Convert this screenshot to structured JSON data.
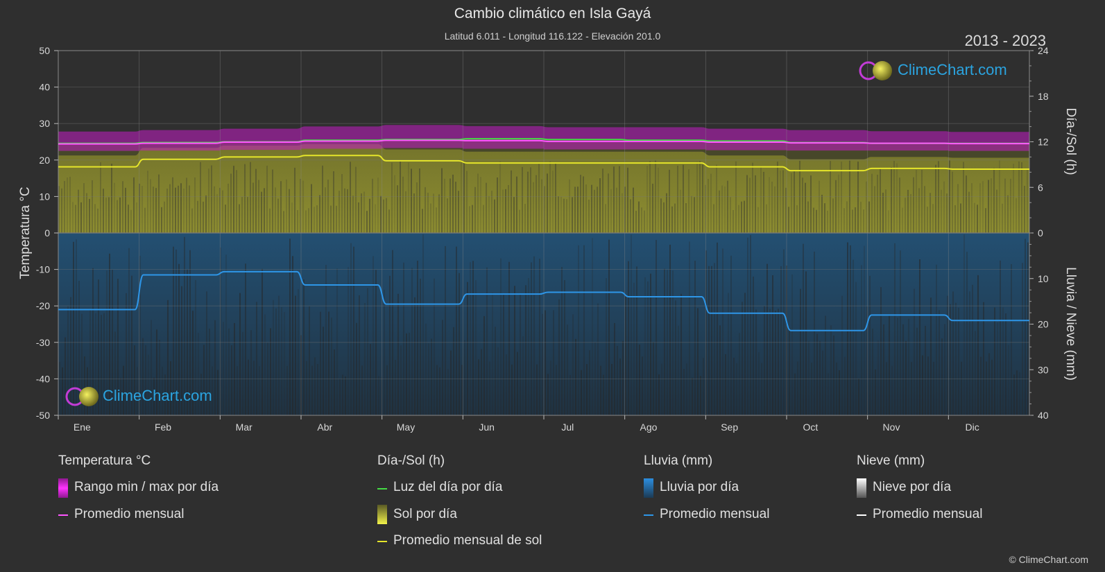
{
  "header": {
    "title": "Cambio climático en Isla Gayá",
    "subtitle": "Latitud 6.011 - Longitud 116.122 - Elevación 201.0",
    "years": "2013 - 2023"
  },
  "logo": {
    "text": "ClimeChart.com"
  },
  "copyright": "© ClimeChart.com",
  "colors": {
    "background": "#2f2f2f",
    "temp_range": "#c21bc4",
    "temp_avg": "#ff55ff",
    "daylight": "#44dd44",
    "sun_fill": "#8b8b2e",
    "sun_avg": "#e6e62a",
    "rain_fill": "#1e5c8c",
    "rain_avg": "#2e96e8",
    "snow_avg": "#ffffff",
    "logo_text": "#2ba4e0"
  },
  "legend": {
    "temperature": {
      "title": "Temperatura °C",
      "items": [
        "Rango min / max por día",
        "Promedio mensual"
      ]
    },
    "sun": {
      "title": "Día-/Sol (h)",
      "items": [
        "Luz del día por día",
        "Sol por día",
        "Promedio mensual de sol"
      ]
    },
    "rain": {
      "title": "Lluvia (mm)",
      "items": [
        "Lluvia por día",
        "Promedio mensual"
      ]
    },
    "snow": {
      "title": "Nieve (mm)",
      "items": [
        "Nieve por día",
        "Promedio mensual"
      ]
    }
  },
  "chart_data": {
    "type": "line",
    "categories": [
      "Ene",
      "Feb",
      "Mar",
      "Abr",
      "May",
      "Jun",
      "Jul",
      "Ago",
      "Sep",
      "Oct",
      "Nov",
      "Dic"
    ],
    "y_left": {
      "label": "Temperatura °C",
      "ticks": [
        50,
        40,
        30,
        20,
        10,
        0,
        -10,
        -20,
        -30,
        -40,
        -50
      ],
      "range": [
        -50,
        50
      ]
    },
    "y_right_top": {
      "label": "Día-/Sol (h)",
      "ticks": [
        24,
        18,
        12,
        6,
        0
      ],
      "range": [
        0,
        24
      ]
    },
    "y_right_bottom": {
      "label": "Lluvia / Nieve (mm)",
      "ticks": [
        0,
        10,
        20,
        30,
        40
      ],
      "range": [
        0,
        40
      ]
    },
    "grid": true,
    "series": [
      {
        "name": "Promedio mensual",
        "axis": "temperature",
        "values": [
          24.4,
          24.6,
          24.9,
          25.2,
          25.4,
          25.3,
          25.1,
          25.1,
          24.9,
          24.7,
          24.6,
          24.5
        ]
      },
      {
        "name": "Rango min / max por día",
        "axis": "temperature",
        "min": [
          22.5,
          22.6,
          22.8,
          23.1,
          23.3,
          23.1,
          22.9,
          22.9,
          22.7,
          22.6,
          22.6,
          22.5
        ],
        "max": [
          27.8,
          28.2,
          28.6,
          29.2,
          29.6,
          29.3,
          29.0,
          29.0,
          28.6,
          28.2,
          27.9,
          27.7
        ]
      },
      {
        "name": "Luz del día por día",
        "axis": "sun",
        "values": [
          11.8,
          11.9,
          12.0,
          12.2,
          12.3,
          12.4,
          12.3,
          12.2,
          12.1,
          11.9,
          11.8,
          11.8
        ]
      },
      {
        "name": "Promedio mensual de sol",
        "axis": "sun",
        "values": [
          8.7,
          9.7,
          10.0,
          10.2,
          9.5,
          9.2,
          9.2,
          9.2,
          8.7,
          8.2,
          8.5,
          8.4
        ]
      },
      {
        "name": "Promedio mensual",
        "axis": "rain",
        "values": [
          16.8,
          9.2,
          8.5,
          11.4,
          15.6,
          13.4,
          13.0,
          14.0,
          17.6,
          21.4,
          18.0,
          19.2
        ]
      }
    ]
  }
}
